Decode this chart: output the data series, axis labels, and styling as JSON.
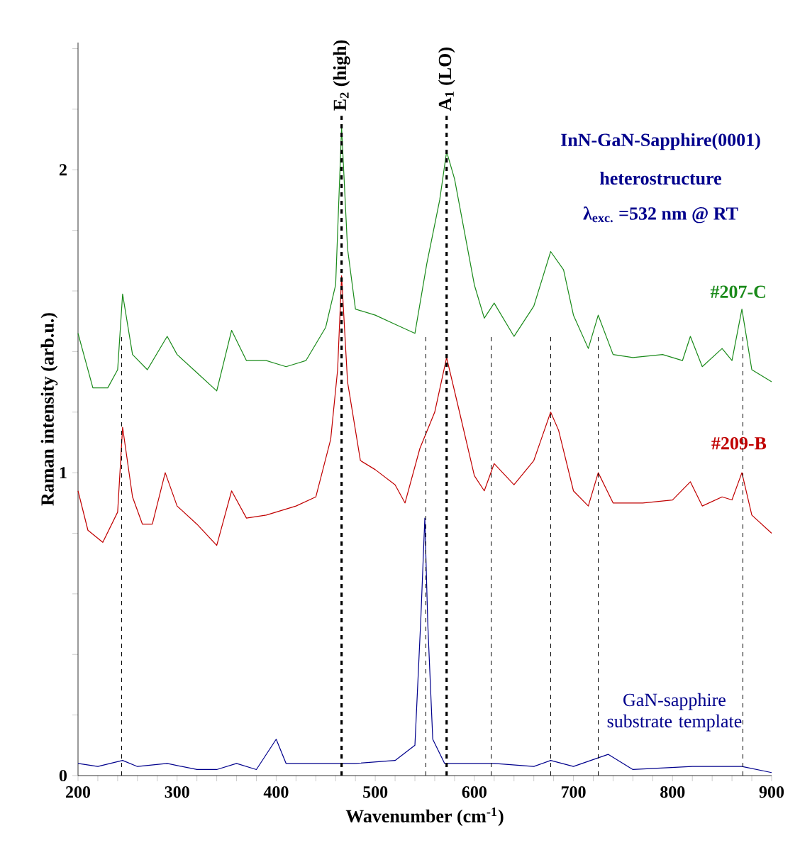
{
  "chart_data": {
    "type": "line",
    "xlabel": "Wavenumber (cm$^{-1}$)",
    "ylabel": "Raman intensity (arb.u.)",
    "xlim": [
      200,
      900
    ],
    "ylim": [
      0,
      2.42
    ],
    "xticks": [
      200,
      {
        "value": 220,
        "label": null
      },
      {
        "value": 240,
        "label": null
      },
      {
        "value": 260,
        "label": null
      },
      {
        "value": 280,
        "label": null
      },
      300,
      {
        "value": 320,
        "label": null
      },
      {
        "value": 340,
        "label": null
      },
      {
        "value": 360,
        "label": null
      },
      {
        "value": 380,
        "label": null
      },
      400,
      {
        "value": 420,
        "label": null
      },
      {
        "value": 440,
        "label": null
      },
      {
        "value": 460,
        "label": null
      },
      {
        "value": 480,
        "label": null
      },
      500,
      {
        "value": 520,
        "label": null
      },
      {
        "value": 540,
        "label": null
      },
      {
        "value": 560,
        "label": null
      },
      {
        "value": 580,
        "label": null
      },
      600,
      {
        "value": 620,
        "label": null
      },
      {
        "value": 640,
        "label": null
      },
      {
        "value": 660,
        "label": null
      },
      {
        "value": 680,
        "label": null
      },
      700,
      {
        "value": 720,
        "label": null
      },
      {
        "value": 740,
        "label": null
      },
      {
        "value": 760,
        "label": null
      },
      {
        "value": 780,
        "label": null
      },
      800,
      {
        "value": 820,
        "label": null
      },
      {
        "value": 840,
        "label": null
      },
      {
        "value": 860,
        "label": null
      },
      {
        "value": 880,
        "label": null
      },
      900
    ],
    "yticks": [
      0,
      {
        "value": 0.2,
        "label": null
      },
      {
        "value": 0.4,
        "label": null
      },
      {
        "value": 0.6,
        "label": null
      },
      {
        "value": 0.8,
        "label": null
      },
      1,
      {
        "value": 1.2,
        "label": null
      },
      {
        "value": 1.4,
        "label": null
      },
      {
        "value": 1.6,
        "label": null
      },
      {
        "value": 1.8,
        "label": null
      },
      2,
      {
        "value": 2.2,
        "label": null
      },
      {
        "value": 2.4,
        "label": null
      }
    ],
    "series": [
      {
        "name": "#207-C",
        "color": "#1a8a1a",
        "x": [
          200,
          215,
          230,
          240,
          245,
          255,
          270,
          290,
          300,
          320,
          340,
          355,
          370,
          390,
          410,
          430,
          450,
          460,
          466,
          472,
          480,
          500,
          520,
          540,
          552,
          565,
          572,
          580,
          600,
          610,
          620,
          640,
          660,
          677,
          690,
          700,
          715,
          725,
          740,
          760,
          790,
          810,
          818,
          830,
          850,
          860,
          870,
          880,
          900
        ],
        "values": [
          1.46,
          1.28,
          1.28,
          1.34,
          1.59,
          1.39,
          1.34,
          1.45,
          1.39,
          1.33,
          1.27,
          1.47,
          1.37,
          1.37,
          1.35,
          1.37,
          1.48,
          1.62,
          2.14,
          1.74,
          1.54,
          1.52,
          1.49,
          1.46,
          1.69,
          1.9,
          2.06,
          1.97,
          1.62,
          1.51,
          1.56,
          1.45,
          1.55,
          1.73,
          1.67,
          1.52,
          1.41,
          1.52,
          1.39,
          1.38,
          1.39,
          1.37,
          1.45,
          1.35,
          1.41,
          1.37,
          1.54,
          1.34,
          1.3
        ]
      },
      {
        "name": "#209-B",
        "color": "#c00000",
        "x": [
          200,
          210,
          225,
          240,
          245,
          255,
          265,
          275,
          288,
          300,
          320,
          340,
          355,
          370,
          390,
          420,
          440,
          455,
          462,
          466,
          472,
          485,
          500,
          520,
          530,
          545,
          560,
          572,
          585,
          600,
          610,
          620,
          640,
          660,
          677,
          685,
          700,
          715,
          725,
          740,
          770,
          800,
          818,
          830,
          850,
          860,
          870,
          880,
          900
        ],
        "values": [
          0.94,
          0.81,
          0.77,
          0.87,
          1.15,
          0.92,
          0.83,
          0.83,
          1.0,
          0.89,
          0.83,
          0.76,
          0.94,
          0.85,
          0.86,
          0.89,
          0.92,
          1.11,
          1.34,
          1.65,
          1.3,
          1.04,
          1.01,
          0.96,
          0.9,
          1.08,
          1.2,
          1.38,
          1.2,
          0.99,
          0.94,
          1.03,
          0.96,
          1.04,
          1.2,
          1.14,
          0.94,
          0.89,
          1.0,
          0.9,
          0.9,
          0.91,
          0.97,
          0.89,
          0.92,
          0.91,
          1.0,
          0.86,
          0.8
        ]
      },
      {
        "name": "GaN-sapphire substrate template",
        "color": "#00008c",
        "x": [
          200,
          220,
          245,
          260,
          290,
          320,
          340,
          360,
          380,
          400,
          410,
          440,
          480,
          520,
          540,
          546,
          550,
          553,
          558,
          570,
          600,
          620,
          660,
          677,
          700,
          735,
          760,
          820,
          870,
          900
        ],
        "values": [
          0.04,
          0.03,
          0.05,
          0.03,
          0.04,
          0.02,
          0.02,
          0.04,
          0.02,
          0.12,
          0.04,
          0.04,
          0.04,
          0.05,
          0.1,
          0.52,
          0.85,
          0.5,
          0.12,
          0.04,
          0.04,
          0.04,
          0.03,
          0.05,
          0.03,
          0.07,
          0.02,
          0.03,
          0.03,
          0.01
        ]
      }
    ],
    "ref_lines": [
      {
        "axis": "x",
        "value": 244,
        "color": "#000000",
        "line_style": "dashed"
      },
      {
        "axis": "x",
        "value": 466,
        "label": "E$_{2}$ (high)",
        "color": "#000000",
        "line_style": "dashed"
      },
      {
        "axis": "x",
        "value": 551,
        "color": "#000000",
        "line_style": "dashed"
      },
      {
        "axis": "x",
        "value": 572,
        "label": "A$_{1}$ (LO)",
        "color": "#000000",
        "line_style": "dashed"
      },
      {
        "axis": "x",
        "value": 617,
        "color": "#000000",
        "line_style": "dashed"
      },
      {
        "axis": "x",
        "value": 677,
        "color": "#000000",
        "line_style": "dashed"
      },
      {
        "axis": "x",
        "value": 725,
        "color": "#000000",
        "line_style": "dashed"
      },
      {
        "axis": "x",
        "value": 871,
        "color": "#000000",
        "line_style": "dashed"
      }
    ],
    "annotations": [
      "InN-GaN-Sapphire(0001)",
      "heterostructure",
      "λ$_{exc.}$ =532 nm @ RT"
    ]
  }
}
